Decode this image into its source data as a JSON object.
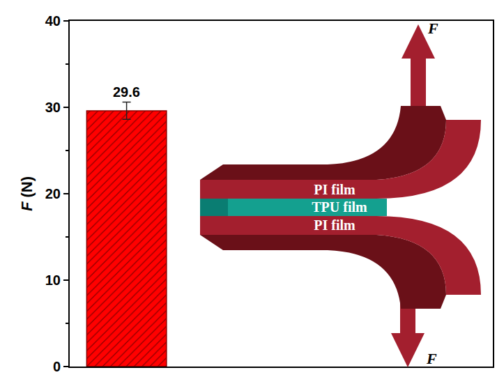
{
  "chart_data": {
    "type": "bar",
    "categories": [
      null
    ],
    "values": [
      29.6
    ],
    "error": [
      1.0
    ],
    "color": "#ff0000",
    "ylabel": "F (N)",
    "ylim": [
      0,
      40
    ],
    "yticks": [
      0,
      10,
      20,
      30,
      40
    ],
    "data_labels": true,
    "tick_labels": "y",
    "grid": false
  },
  "diagram": {
    "layers": [
      "PI film",
      "TPU film",
      "PI film"
    ],
    "force_labels": [
      "F",
      "F"
    ]
  }
}
